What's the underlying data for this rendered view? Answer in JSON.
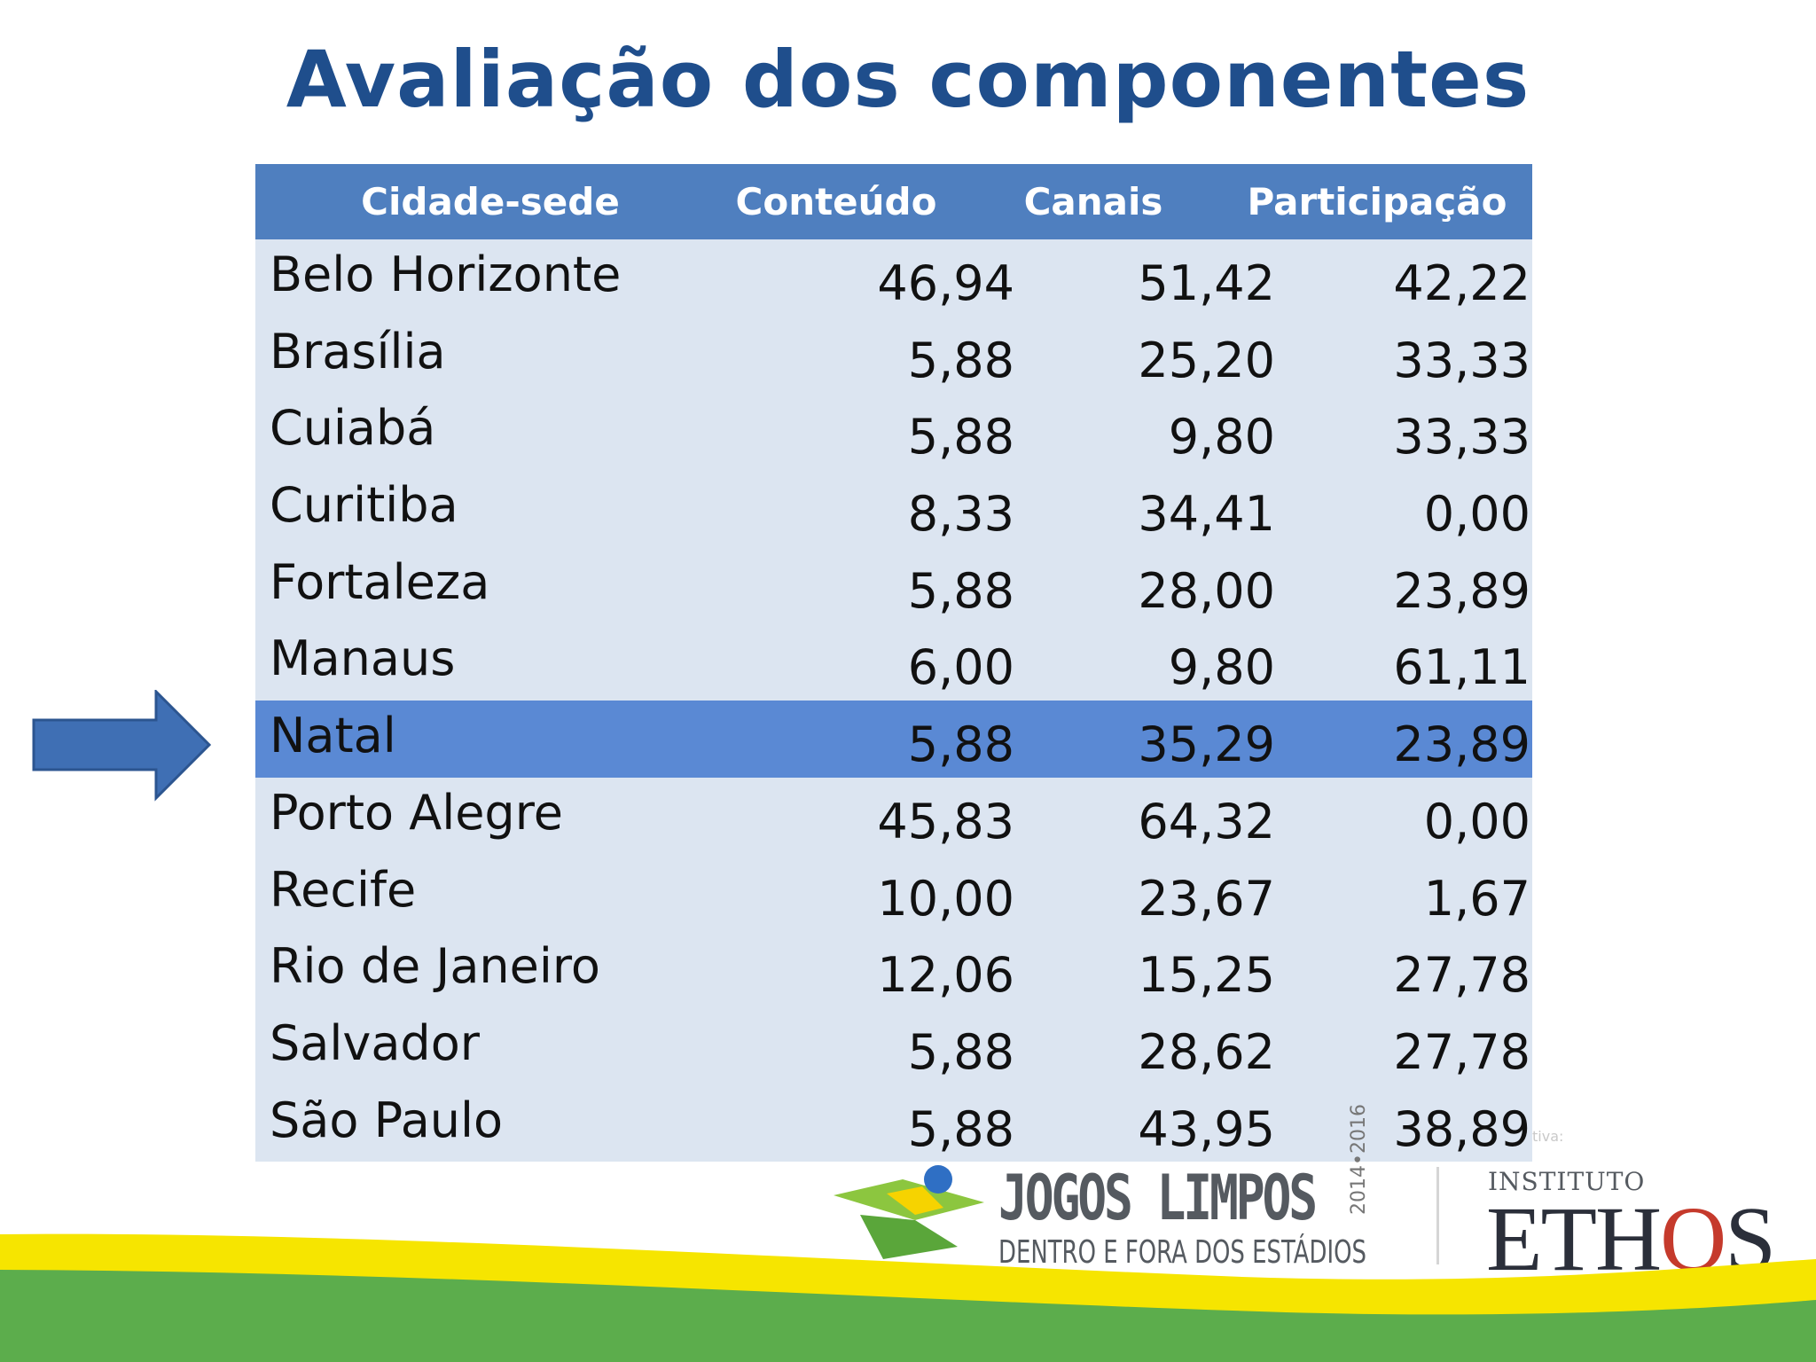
{
  "slide": {
    "title": "Avaliação dos componentes"
  },
  "table": {
    "headers": [
      "Cidade-sede",
      "Conteúdo",
      "Canais",
      "Participação"
    ],
    "rows": [
      {
        "city": "Belo Horizonte",
        "conteudo": "46,94",
        "canais": "51,42",
        "participacao": "42,22"
      },
      {
        "city": "Brasília",
        "conteudo": "5,88",
        "canais": "25,20",
        "participacao": "33,33"
      },
      {
        "city": "Cuiabá",
        "conteudo": "5,88",
        "canais": "9,80",
        "participacao": "33,33"
      },
      {
        "city": "Curitiba",
        "conteudo": "8,33",
        "canais": "34,41",
        "participacao": "0,00"
      },
      {
        "city": "Fortaleza",
        "conteudo": "5,88",
        "canais": "28,00",
        "participacao": "23,89"
      },
      {
        "city": "Manaus",
        "conteudo": "6,00",
        "canais": "9,80",
        "participacao": "61,11"
      },
      {
        "city": "Natal",
        "conteudo": "5,88",
        "canais": "35,29",
        "participacao": "23,89",
        "highlighted": true
      },
      {
        "city": "Porto Alegre",
        "conteudo": "45,83",
        "canais": "64,32",
        "participacao": "0,00"
      },
      {
        "city": "Recife",
        "conteudo": "10,00",
        "canais": "23,67",
        "participacao": "1,67"
      },
      {
        "city": "Rio de Janeiro",
        "conteudo": "12,06",
        "canais": "15,25",
        "participacao": "27,78"
      },
      {
        "city": "Salvador",
        "conteudo": "5,88",
        "canais": "28,62",
        "participacao": "27,78"
      },
      {
        "city": "São Paulo",
        "conteudo": "5,88",
        "canais": "43,95",
        "participacao": "38,89"
      }
    ]
  },
  "note": "tiva:",
  "logos": {
    "jogos_limpos": {
      "title": "JOGOS LIMPOS",
      "subtitle": "DENTRO E FORA DOS ESTÁDIOS",
      "years": "2014•2016"
    },
    "ethos": {
      "small": "INSTITUTO",
      "big": "ETHOS"
    }
  },
  "colors": {
    "title": "#1f4e8c",
    "header_bg": "#4f7fbf",
    "row_bg": "#dce5f1",
    "highlight_bg": "#5a89d4",
    "arrow": "#3f6fb4",
    "band_green": "#5cad4c",
    "band_yellow": "#f6e500"
  }
}
